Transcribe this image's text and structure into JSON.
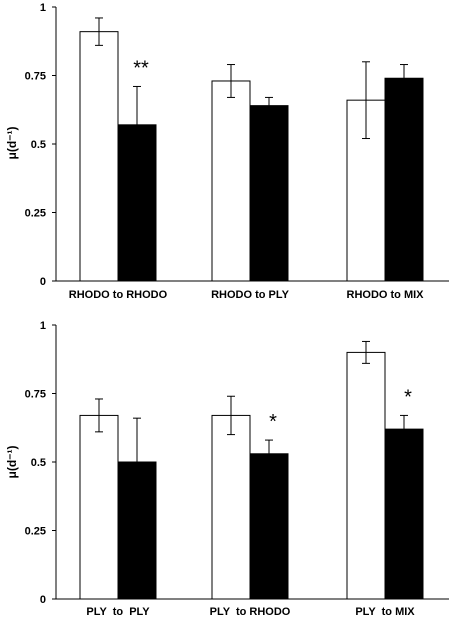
{
  "chart_data": [
    {
      "type": "bar",
      "ylabel": "μ(d⁻¹)",
      "ylim": [
        0,
        1
      ],
      "yticks": [
        "0",
        "0.25",
        "0.5",
        "0.75",
        "1"
      ],
      "categories": [
        "RHODO to RHODO",
        "RHODO to PLY",
        "RHODO to MIX"
      ],
      "series": [
        {
          "color": "#ffffff",
          "values": [
            0.91,
            0.73,
            0.66
          ],
          "errors": [
            0.05,
            0.06,
            0.14
          ]
        },
        {
          "color": "#000000",
          "values": [
            0.57,
            0.64,
            0.74
          ],
          "errors": [
            0.14,
            0.03,
            0.05
          ]
        }
      ],
      "annotations": [
        "**",
        "",
        ""
      ]
    },
    {
      "type": "bar",
      "ylabel": "μ(d⁻¹)",
      "ylim": [
        0,
        1
      ],
      "yticks": [
        "0",
        "0.25",
        "0.5",
        "0.75",
        "1"
      ],
      "categories": [
        "PLY  to  PLY",
        "PLY  to RHODO",
        "PLY  to MIX"
      ],
      "series": [
        {
          "color": "#ffffff",
          "values": [
            0.67,
            0.67,
            0.9
          ],
          "errors": [
            0.06,
            0.07,
            0.04
          ]
        },
        {
          "color": "#000000",
          "values": [
            0.5,
            0.53,
            0.62
          ],
          "errors": [
            0.16,
            0.05,
            0.05
          ]
        }
      ],
      "annotations": [
        "",
        "*",
        "*"
      ]
    }
  ]
}
